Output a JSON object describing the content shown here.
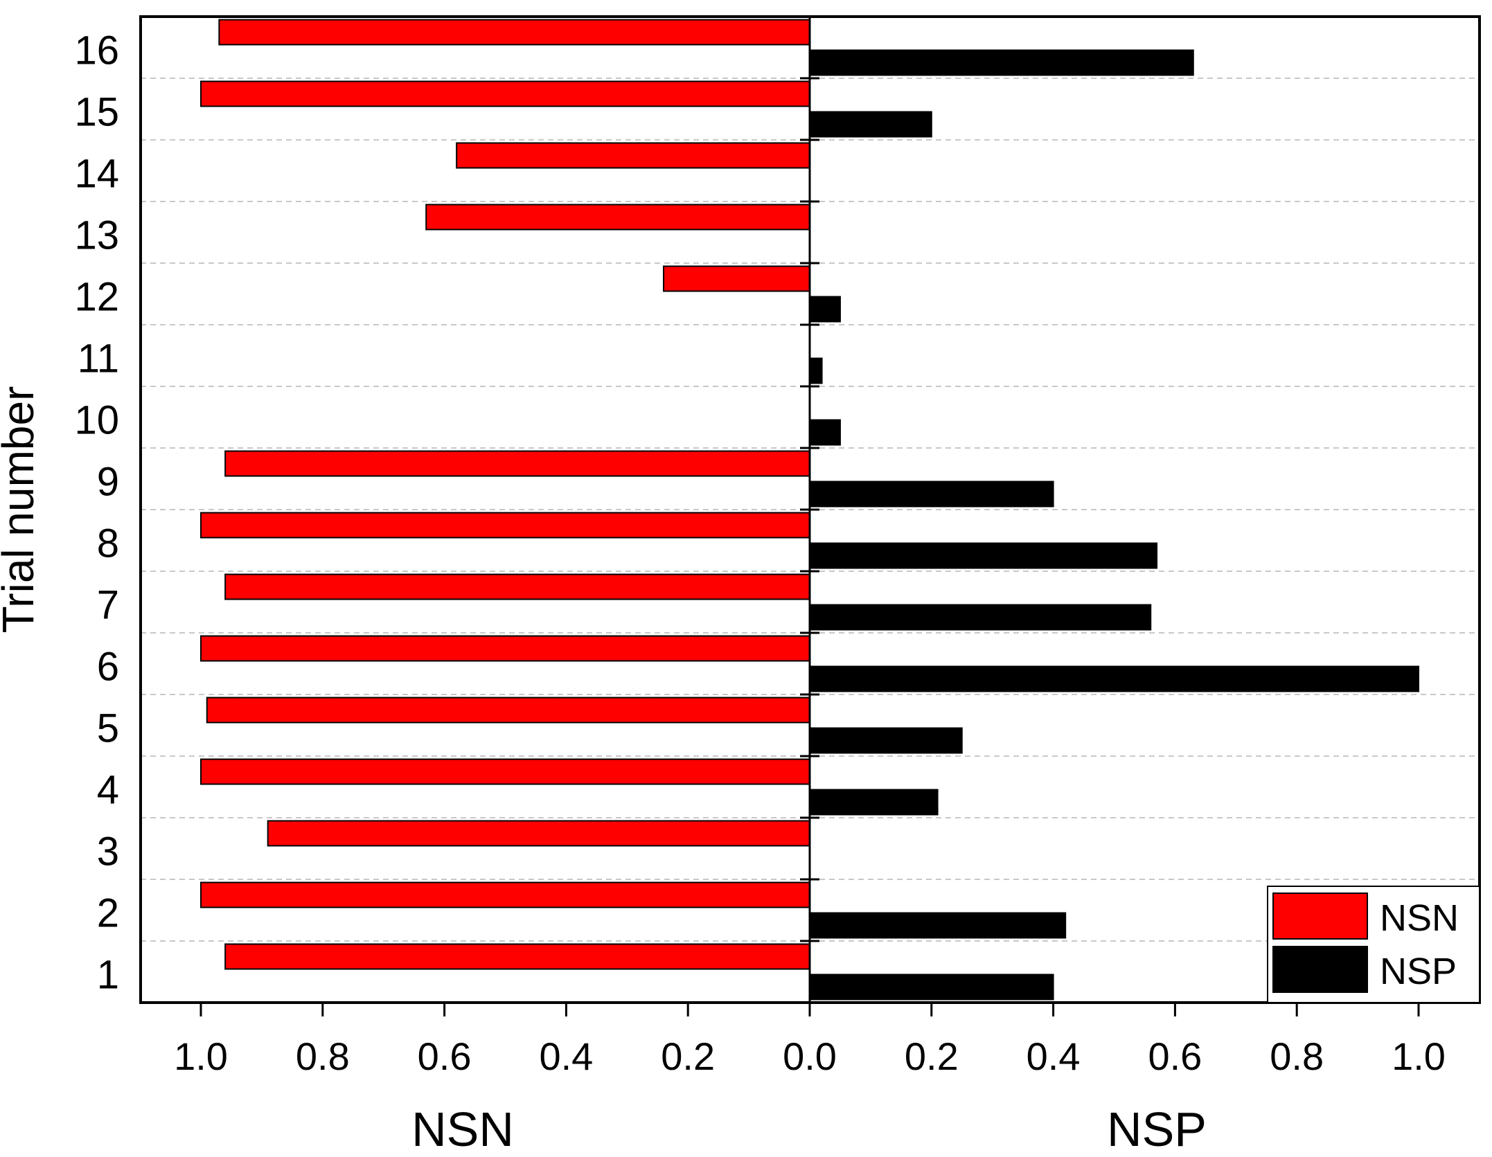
{
  "chart_data": {
    "type": "bar",
    "orientation": "horizontal-diverging",
    "title": "",
    "ylabel": "Trial number",
    "xlabel_left": "NSN",
    "xlabel_right": "NSP",
    "categories": [
      "1",
      "2",
      "3",
      "4",
      "5",
      "6",
      "7",
      "8",
      "9",
      "10",
      "11",
      "12",
      "13",
      "14",
      "15",
      "16"
    ],
    "series": [
      {
        "name": "NSN",
        "side": "left",
        "color": "#ff0000",
        "values": [
          0.96,
          1.0,
          0.89,
          1.0,
          0.99,
          1.0,
          0.96,
          1.0,
          0.96,
          0.0,
          0.0,
          0.24,
          0.63,
          0.58,
          1.0,
          0.97
        ]
      },
      {
        "name": "NSP",
        "side": "right",
        "color": "#000000",
        "values": [
          0.4,
          0.42,
          0.0,
          0.21,
          0.25,
          1.0,
          0.56,
          0.57,
          0.4,
          0.05,
          0.02,
          0.05,
          0.0,
          0.0,
          0.2,
          0.63
        ]
      }
    ],
    "xlim_left": [
      1.1,
      0.0
    ],
    "xlim_right": [
      0.0,
      1.1
    ],
    "x_ticks_left": [
      "1.0",
      "0.8",
      "0.6",
      "0.4",
      "0.2",
      "0.0"
    ],
    "x_ticks_right": [
      "0.2",
      "0.4",
      "0.6",
      "0.8",
      "1.0"
    ],
    "x_tick_values_left": [
      1.0,
      0.8,
      0.6,
      0.4,
      0.2,
      0.0
    ],
    "x_tick_values_right": [
      0.2,
      0.4,
      0.6,
      0.8,
      1.0
    ],
    "grid": "horizontal dashed",
    "legend": {
      "placement": "bottom-right",
      "entries": [
        "NSN",
        "NSP"
      ]
    }
  }
}
